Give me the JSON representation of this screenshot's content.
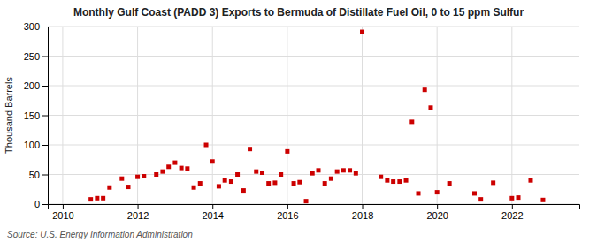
{
  "chart_data": {
    "type": "scatter",
    "title": "Monthly Gulf Coast (PADD 3) Exports to Bermuda of Distillate Fuel Oil, 0 to 15 ppm Sulfur",
    "ylabel": "Thousand Barrels",
    "source": "Source: U.S. Energy Information Administration",
    "color": "#cc0000",
    "marker": "square",
    "grid": true,
    "xlim": [
      2009.6,
      2023.8
    ],
    "xticks": [
      2010,
      2012,
      2014,
      2016,
      2018,
      2020,
      2022
    ],
    "ylim": [
      0,
      300
    ],
    "yticks": [
      0,
      50,
      100,
      150,
      200,
      250,
      300
    ],
    "x": [
      2010.75,
      2010.92,
      2011.08,
      2011.25,
      2011.58,
      2011.75,
      2012.0,
      2012.17,
      2012.5,
      2012.67,
      2012.83,
      2013.0,
      2013.17,
      2013.33,
      2013.5,
      2013.67,
      2013.83,
      2014.0,
      2014.17,
      2014.33,
      2014.5,
      2014.67,
      2014.83,
      2015.0,
      2015.17,
      2015.33,
      2015.5,
      2015.67,
      2015.83,
      2016.0,
      2016.17,
      2016.33,
      2016.5,
      2016.67,
      2016.83,
      2017.0,
      2017.17,
      2017.33,
      2017.5,
      2017.67,
      2017.83,
      2018.0,
      2018.5,
      2018.67,
      2018.83,
      2019.0,
      2019.17,
      2019.33,
      2019.5,
      2019.67,
      2019.83,
      2020.0,
      2020.33,
      2021.0,
      2021.17,
      2021.5,
      2022.0,
      2022.17,
      2022.5,
      2022.83
    ],
    "values": [
      8,
      10,
      10,
      28,
      43,
      29,
      46,
      47,
      50,
      55,
      63,
      70,
      61,
      60,
      28,
      35,
      100,
      72,
      30,
      40,
      38,
      50,
      23,
      93,
      55,
      53,
      35,
      36,
      50,
      89,
      35,
      37,
      5,
      52,
      57,
      35,
      43,
      55,
      57,
      57,
      52,
      291,
      46,
      40,
      38,
      38,
      40,
      139,
      18,
      193,
      163,
      20,
      35,
      18,
      8,
      36,
      10,
      11,
      40,
      7
    ]
  }
}
